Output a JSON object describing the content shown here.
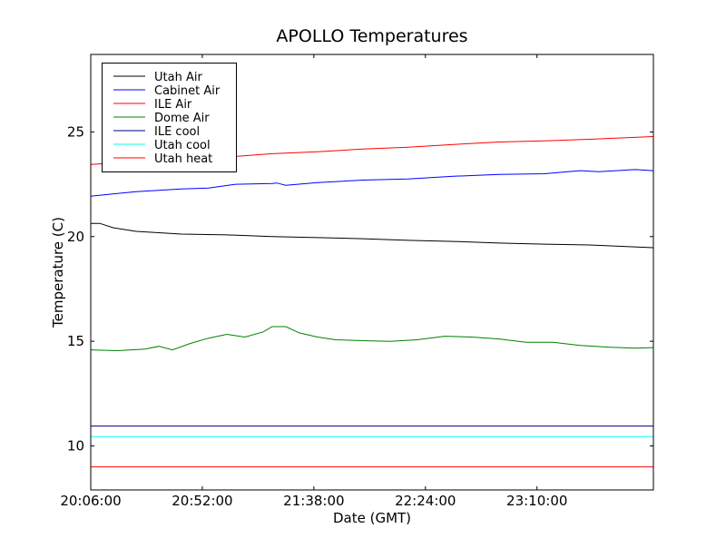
{
  "chart_data": {
    "type": "line",
    "title": "APOLLO Temperatures",
    "xlabel": "Date (GMT)",
    "ylabel": "Temperature (C)",
    "x_units": "minutes since 20:06:00",
    "xlim": [
      0,
      232
    ],
    "ylim": [
      7.9,
      28.7
    ],
    "xticks": [
      {
        "value": 0,
        "label": "20:06:00"
      },
      {
        "value": 46,
        "label": "20:52:00"
      },
      {
        "value": 92,
        "label": "21:38:00"
      },
      {
        "value": 138,
        "label": "22:24:00"
      },
      {
        "value": 184,
        "label": "23:10:00"
      }
    ],
    "yticks": [
      {
        "value": 10,
        "label": "10"
      },
      {
        "value": 15,
        "label": "15"
      },
      {
        "value": 20,
        "label": "20"
      },
      {
        "value": 25,
        "label": "25"
      }
    ],
    "grid": false,
    "legend_position": "top-left",
    "series": [
      {
        "name": "Utah Air",
        "color": "#000000",
        "x": [
          0,
          3.7,
          9.4,
          18.7,
          37.4,
          56.1,
          74.8,
          93.5,
          112.2,
          130.9,
          149.6,
          168.3,
          187,
          205.7,
          231.9
        ],
        "y": [
          20.63,
          20.63,
          20.42,
          20.25,
          20.12,
          20.08,
          20.0,
          19.95,
          19.9,
          19.82,
          19.77,
          19.69,
          19.64,
          19.6,
          19.47
        ]
      },
      {
        "name": "Cabinet Air",
        "color": "#0000ff",
        "x": [
          0,
          18.7,
          37.4,
          48.6,
          59.8,
          74.8,
          76.7,
          80.4,
          93.5,
          112.2,
          130.9,
          149.6,
          168.3,
          187,
          202,
          209.4,
          224.4,
          231.9
        ],
        "y": [
          21.93,
          22.15,
          22.28,
          22.32,
          22.5,
          22.54,
          22.56,
          22.45,
          22.58,
          22.7,
          22.75,
          22.88,
          22.97,
          23.0,
          23.15,
          23.1,
          23.2,
          23.15
        ]
      },
      {
        "name": "ILE Air",
        "color": "#ff0000",
        "x": [
          0,
          59.8,
          74.8,
          93.5,
          112.2,
          130.9,
          149.6,
          168.3,
          187,
          205.7,
          231.9
        ],
        "y": [
          23.45,
          23.83,
          23.96,
          24.05,
          24.18,
          24.27,
          24.4,
          24.52,
          24.57,
          24.65,
          24.78
        ]
      },
      {
        "name": "Dome Air",
        "color": "#008000",
        "x": [
          0,
          11.2,
          22.4,
          28.1,
          33.7,
          41.1,
          48.6,
          56.1,
          63.6,
          71.1,
          74.8,
          80.4,
          86,
          93.5,
          101,
          112.2,
          123.4,
          134.6,
          145.9,
          157.1,
          168.3,
          179.5,
          190.7,
          202,
          213.2,
          224.4,
          231.9
        ],
        "y": [
          14.59,
          14.55,
          14.63,
          14.76,
          14.59,
          14.9,
          15.15,
          15.33,
          15.2,
          15.45,
          15.7,
          15.7,
          15.4,
          15.2,
          15.07,
          15.03,
          15.0,
          15.07,
          15.24,
          15.2,
          15.11,
          14.95,
          14.95,
          14.8,
          14.72,
          14.67,
          14.7
        ]
      },
      {
        "name": "ILE cool",
        "color": "#000080",
        "x": [
          0,
          231.9
        ],
        "y": [
          10.95,
          10.95
        ]
      },
      {
        "name": "Utah cool",
        "color": "#00ffff",
        "x": [
          0,
          231.9
        ],
        "y": [
          10.45,
          10.45
        ]
      },
      {
        "name": "Utah heat",
        "color": "#ff0000",
        "x": [
          0,
          231.9
        ],
        "y": [
          9.0,
          9.0
        ]
      }
    ]
  }
}
